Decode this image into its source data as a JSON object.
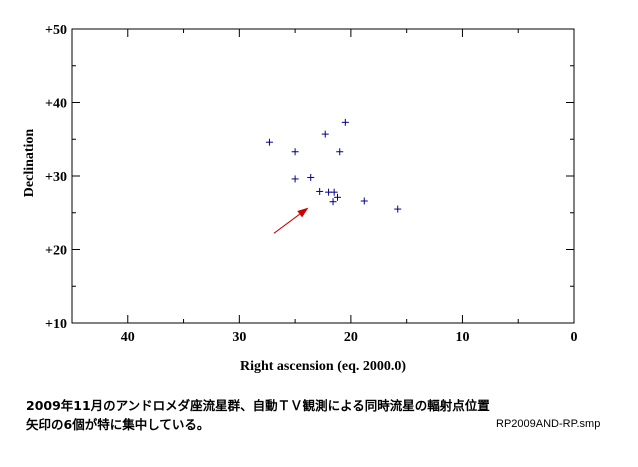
{
  "chart_data": {
    "type": "scatter",
    "title": "",
    "xlabel": "Right ascension (eq. 2000.0)",
    "ylabel": "Declination",
    "xlim": [
      45,
      0
    ],
    "ylim": [
      10,
      50
    ],
    "x_ticks": [
      40,
      30,
      20,
      10,
      0
    ],
    "x_tick_labels": [
      "40",
      "30",
      "20",
      "10",
      "0"
    ],
    "y_ticks": [
      10,
      20,
      30,
      40,
      50
    ],
    "y_tick_labels": [
      "+10",
      "+20",
      "+30",
      "+40",
      "+50"
    ],
    "grid": false,
    "marker": "plus",
    "marker_color": "#00008b",
    "points": [
      {
        "x": 27.3,
        "y": 34.6
      },
      {
        "x": 25.0,
        "y": 33.3
      },
      {
        "x": 25.0,
        "y": 29.6
      },
      {
        "x": 23.6,
        "y": 29.8
      },
      {
        "x": 22.3,
        "y": 35.7
      },
      {
        "x": 20.5,
        "y": 37.3
      },
      {
        "x": 21.0,
        "y": 33.3
      },
      {
        "x": 22.8,
        "y": 27.9
      },
      {
        "x": 22.0,
        "y": 27.8
      },
      {
        "x": 21.5,
        "y": 27.8
      },
      {
        "x": 21.2,
        "y": 27.1
      },
      {
        "x": 21.6,
        "y": 26.5
      },
      {
        "x": 18.8,
        "y": 26.6
      },
      {
        "x": 15.8,
        "y": 25.5
      }
    ],
    "arrow": {
      "from": {
        "x": 26.9,
        "y": 22.2
      },
      "to": {
        "x": 23.8,
        "y": 25.7
      },
      "color": "#cc0000"
    }
  },
  "caption": {
    "line1": "2009年11月のアンドロメダ座流星群、自動ＴＶ観測による同時流星の輻射点位置",
    "line2": "矢印の6個が特に集中している。"
  },
  "file_label": "RP2009AND-RP.smp"
}
